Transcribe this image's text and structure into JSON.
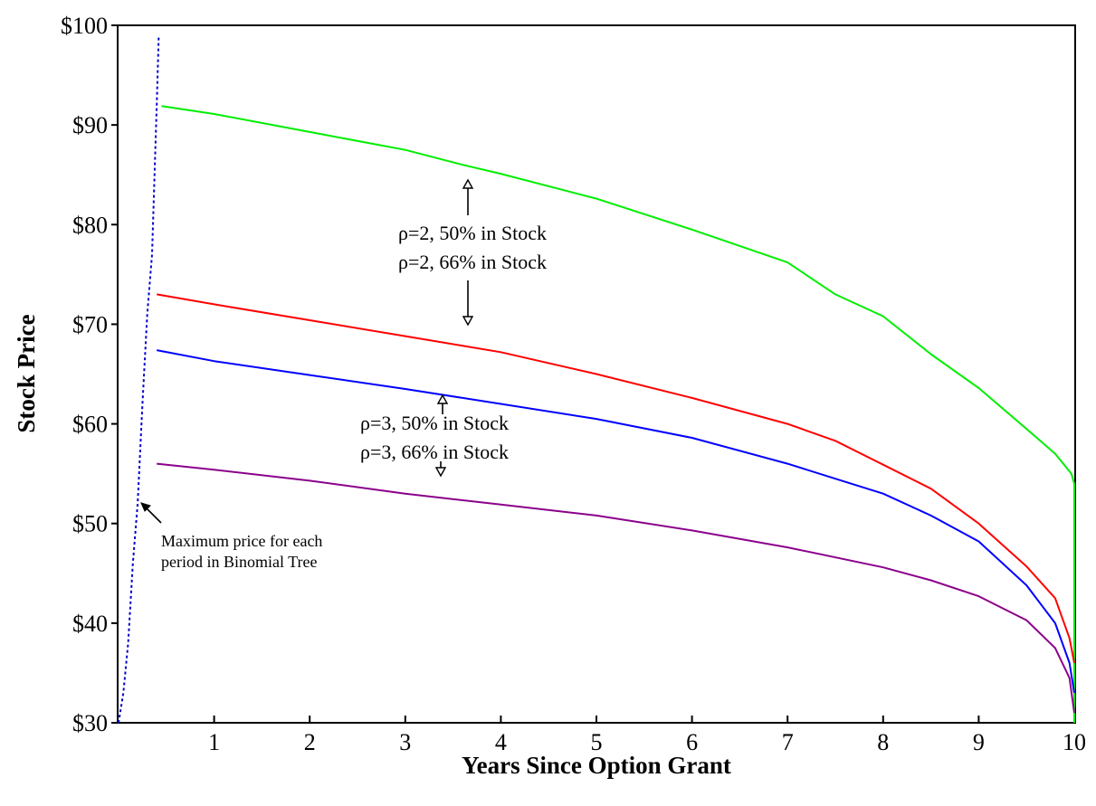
{
  "chart_data": {
    "type": "line",
    "title": "",
    "xlabel": "Years Since Option Grant",
    "ylabel": "Stock Price",
    "xlim": [
      0,
      10
    ],
    "ylim": [
      30,
      100
    ],
    "x_ticks": [
      "1",
      "2",
      "3",
      "4",
      "5",
      "6",
      "7",
      "8",
      "9",
      "10"
    ],
    "y_ticks": [
      "$30",
      "$40",
      "$50",
      "$60",
      "$70",
      "$80",
      "$90",
      "$100"
    ],
    "grid": false,
    "colors": {
      "green": "#00ee00",
      "red": "#ff0000",
      "blue": "#0000ff",
      "purple": "#8b008b",
      "dotted": "#0000cc"
    },
    "series": [
      {
        "color": "green",
        "style": "solid",
        "points": [
          [
            0.45,
            91.9
          ],
          [
            1,
            91.1
          ],
          [
            2,
            89.3
          ],
          [
            3,
            87.5
          ],
          [
            3.6,
            86.0
          ],
          [
            4,
            85.1
          ],
          [
            5,
            82.6
          ],
          [
            6,
            79.5
          ],
          [
            7,
            76.2
          ],
          [
            7.5,
            73.0
          ],
          [
            8,
            70.8
          ],
          [
            8.5,
            67.0
          ],
          [
            9,
            63.6
          ],
          [
            9.5,
            59.5
          ],
          [
            9.8,
            57.0
          ],
          [
            9.97,
            55.0
          ],
          [
            10,
            54.0
          ],
          [
            10,
            30.0
          ]
        ]
      },
      {
        "color": "red",
        "style": "solid",
        "points": [
          [
            0.4,
            73.0
          ],
          [
            1,
            72.0
          ],
          [
            2,
            70.4
          ],
          [
            3,
            68.8
          ],
          [
            4,
            67.2
          ],
          [
            5,
            65.0
          ],
          [
            6,
            62.6
          ],
          [
            7,
            60.0
          ],
          [
            7.5,
            58.3
          ],
          [
            8,
            55.9
          ],
          [
            8.5,
            53.5
          ],
          [
            9,
            50.0
          ],
          [
            9.5,
            45.7
          ],
          [
            9.8,
            42.5
          ],
          [
            9.95,
            38.5
          ],
          [
            10,
            36.0
          ]
        ]
      },
      {
        "color": "blue",
        "style": "solid",
        "points": [
          [
            0.4,
            67.4
          ],
          [
            1,
            66.3
          ],
          [
            2,
            64.9
          ],
          [
            3,
            63.5
          ],
          [
            4,
            62.0
          ],
          [
            5,
            60.5
          ],
          [
            6,
            58.6
          ],
          [
            7,
            56.0
          ],
          [
            7.5,
            54.5
          ],
          [
            8,
            53.0
          ],
          [
            8.5,
            50.8
          ],
          [
            9,
            48.2
          ],
          [
            9.5,
            43.8
          ],
          [
            9.8,
            40.0
          ],
          [
            9.95,
            36.0
          ],
          [
            10,
            33.0
          ]
        ]
      },
      {
        "color": "purple",
        "style": "solid",
        "points": [
          [
            0.4,
            56.0
          ],
          [
            1,
            55.4
          ],
          [
            2,
            54.3
          ],
          [
            3,
            53.0
          ],
          [
            4,
            51.9
          ],
          [
            5,
            50.8
          ],
          [
            6,
            49.3
          ],
          [
            7,
            47.6
          ],
          [
            8,
            45.6
          ],
          [
            8.5,
            44.3
          ],
          [
            9,
            42.7
          ],
          [
            9.5,
            40.3
          ],
          [
            9.8,
            37.5
          ],
          [
            9.95,
            34.5
          ],
          [
            10,
            31.0
          ]
        ]
      },
      {
        "color": "dotted",
        "style": "dotted",
        "points": [
          [
            0,
            30.0
          ],
          [
            0.05,
            33.0
          ],
          [
            0.1,
            38.0
          ],
          [
            0.15,
            46.0
          ],
          [
            0.2,
            52.0
          ],
          [
            0.25,
            62.0
          ],
          [
            0.3,
            71.0
          ],
          [
            0.35,
            77.0
          ],
          [
            0.38,
            86.0
          ],
          [
            0.4,
            92.0
          ],
          [
            0.42,
            99.0
          ]
        ]
      }
    ],
    "annotations": [
      {
        "lines": [
          "ρ=2, 50% in Stock",
          "ρ=2, 66% in Stock"
        ],
        "position": "upper-middle"
      },
      {
        "lines": [
          "ρ=3, 50% in Stock",
          "ρ=3, 66% in Stock"
        ],
        "position": "middle"
      },
      {
        "lines": [
          "Maximum price for each",
          "period in Binomial Tree"
        ],
        "position": "lower-left"
      }
    ]
  }
}
